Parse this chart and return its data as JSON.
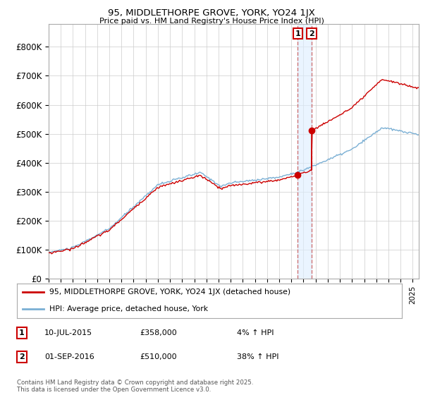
{
  "title1": "95, MIDDLETHORPE GROVE, YORK, YO24 1JX",
  "title2": "Price paid vs. HM Land Registry's House Price Index (HPI)",
  "legend_line1": "95, MIDDLETHORPE GROVE, YORK, YO24 1JX (detached house)",
  "legend_line2": "HPI: Average price, detached house, York",
  "footer": "Contains HM Land Registry data © Crown copyright and database right 2025.\nThis data is licensed under the Open Government Licence v3.0.",
  "transaction1_date": "10-JUL-2015",
  "transaction1_price": "£358,000",
  "transaction1_pct": "4% ↑ HPI",
  "transaction1_label": "1",
  "transaction2_date": "01-SEP-2016",
  "transaction2_price": "£510,000",
  "transaction2_pct": "38% ↑ HPI",
  "transaction2_label": "2",
  "property_color": "#cc0000",
  "hpi_color": "#7aafd4",
  "annotation_box_color": "#cc0000",
  "dashed_line_color": "#cc6666",
  "shade_color": "#ddeeff",
  "ylim": [
    0,
    880000
  ],
  "yticks": [
    0,
    100000,
    200000,
    300000,
    400000,
    500000,
    600000,
    700000,
    800000
  ],
  "ytick_labels": [
    "£0",
    "£100K",
    "£200K",
    "£300K",
    "£400K",
    "£500K",
    "£600K",
    "£700K",
    "£800K"
  ],
  "xstart": 1995.0,
  "xend": 2025.5,
  "transaction1_x": 2015.53,
  "transaction2_x": 2016.67,
  "transaction1_price_val": 358000,
  "transaction2_price_val": 510000,
  "hpi_at_t1": 344000,
  "hpi_at_t2": 370000
}
